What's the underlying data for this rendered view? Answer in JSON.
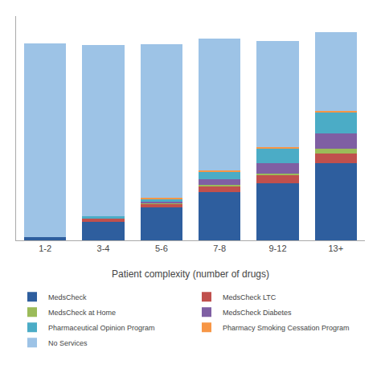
{
  "chart_data": {
    "type": "bar",
    "stacked": true,
    "xlabel": "Patient complexity (number of drugs)",
    "categories": [
      "1-2",
      "3-4",
      "5-6",
      "7-8",
      "9-12",
      "13+"
    ],
    "series": [
      {
        "name": "MedsCheck",
        "color": "#2E5E9E",
        "values": [
          1.5,
          8.5,
          15.0,
          22.0,
          26.0,
          35.0
        ]
      },
      {
        "name": "MedsCheck LTC",
        "color": "#C0504D",
        "values": [
          0.0,
          1.5,
          1.8,
          2.8,
          3.5,
          4.5
        ]
      },
      {
        "name": "MedsCheck at Home",
        "color": "#9BBB59",
        "values": [
          0.0,
          0.0,
          0.2,
          0.4,
          1.0,
          2.0
        ]
      },
      {
        "name": "MedsCheck Diabetes",
        "color": "#7F5FA3",
        "values": [
          0.0,
          0.0,
          0.5,
          2.5,
          4.5,
          7.0
        ]
      },
      {
        "name": "Pharmaceutical Opinion Program",
        "color": "#4BACC6",
        "values": [
          0.0,
          0.8,
          1.5,
          3.5,
          7.0,
          9.5
        ]
      },
      {
        "name": "Pharmacy Smoking Cessation Program",
        "color": "#F79646",
        "values": [
          0.0,
          0.0,
          0.3,
          0.5,
          0.5,
          0.8
        ]
      },
      {
        "name": "No Services",
        "color": "#9DC3E6",
        "values": [
          88.0,
          78.0,
          70.0,
          60.0,
          48.0,
          36.0
        ]
      }
    ],
    "ylim": [
      0,
      102
    ],
    "grid": false,
    "legend": "bottom",
    "tick_labels": "x"
  }
}
